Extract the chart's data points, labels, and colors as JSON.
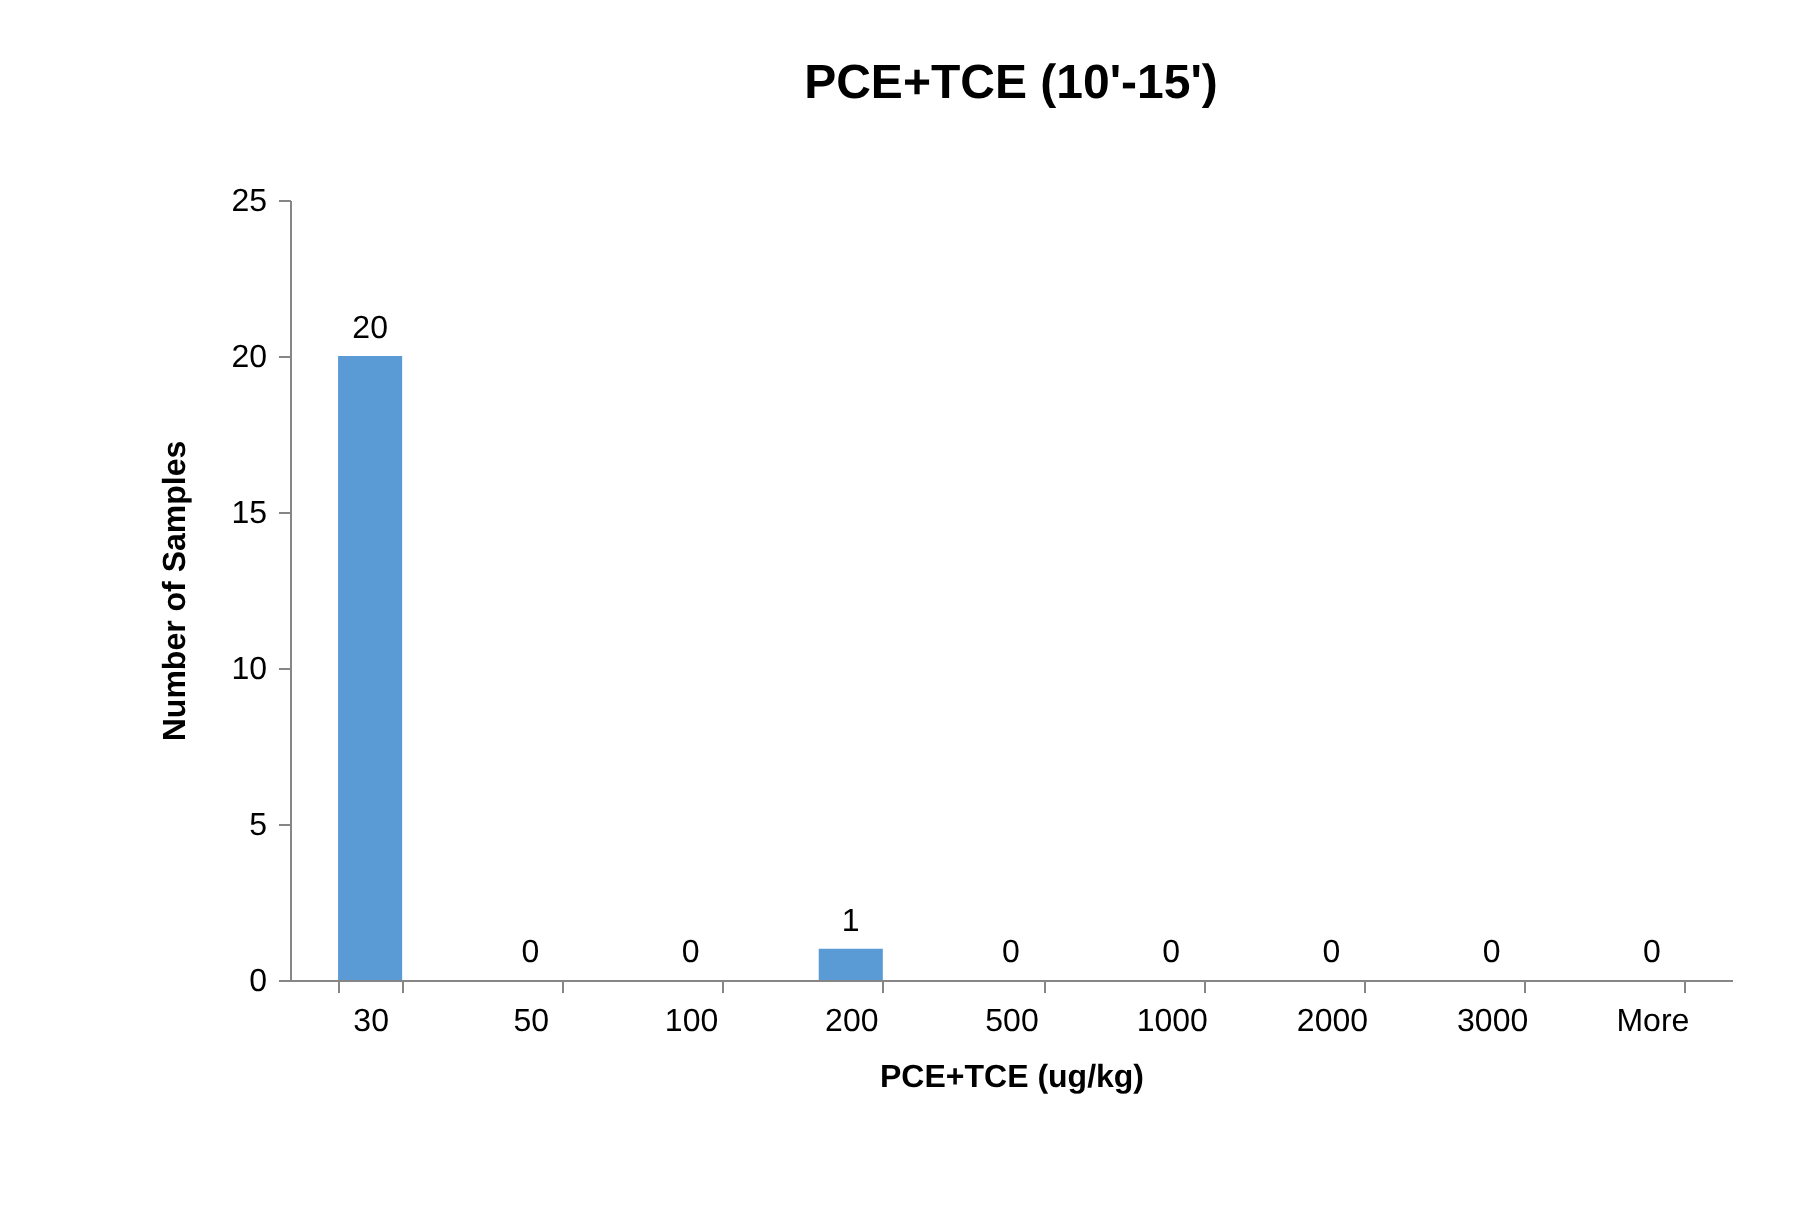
{
  "chart_data": {
    "type": "bar",
    "title": "PCE+TCE (10'-15')",
    "xlabel": "PCE+TCE (ug/kg)",
    "ylabel": "Number of Samples",
    "categories": [
      "30",
      "50",
      "100",
      "200",
      "500",
      "1000",
      "2000",
      "3000",
      "More"
    ],
    "values": [
      20,
      0,
      0,
      1,
      0,
      0,
      0,
      0,
      0
    ],
    "color": "#5b9bd5",
    "ylim": [
      0,
      25
    ],
    "yticks": [
      0,
      5,
      10,
      15,
      20,
      25
    ],
    "grid": false,
    "data_labels": true
  }
}
